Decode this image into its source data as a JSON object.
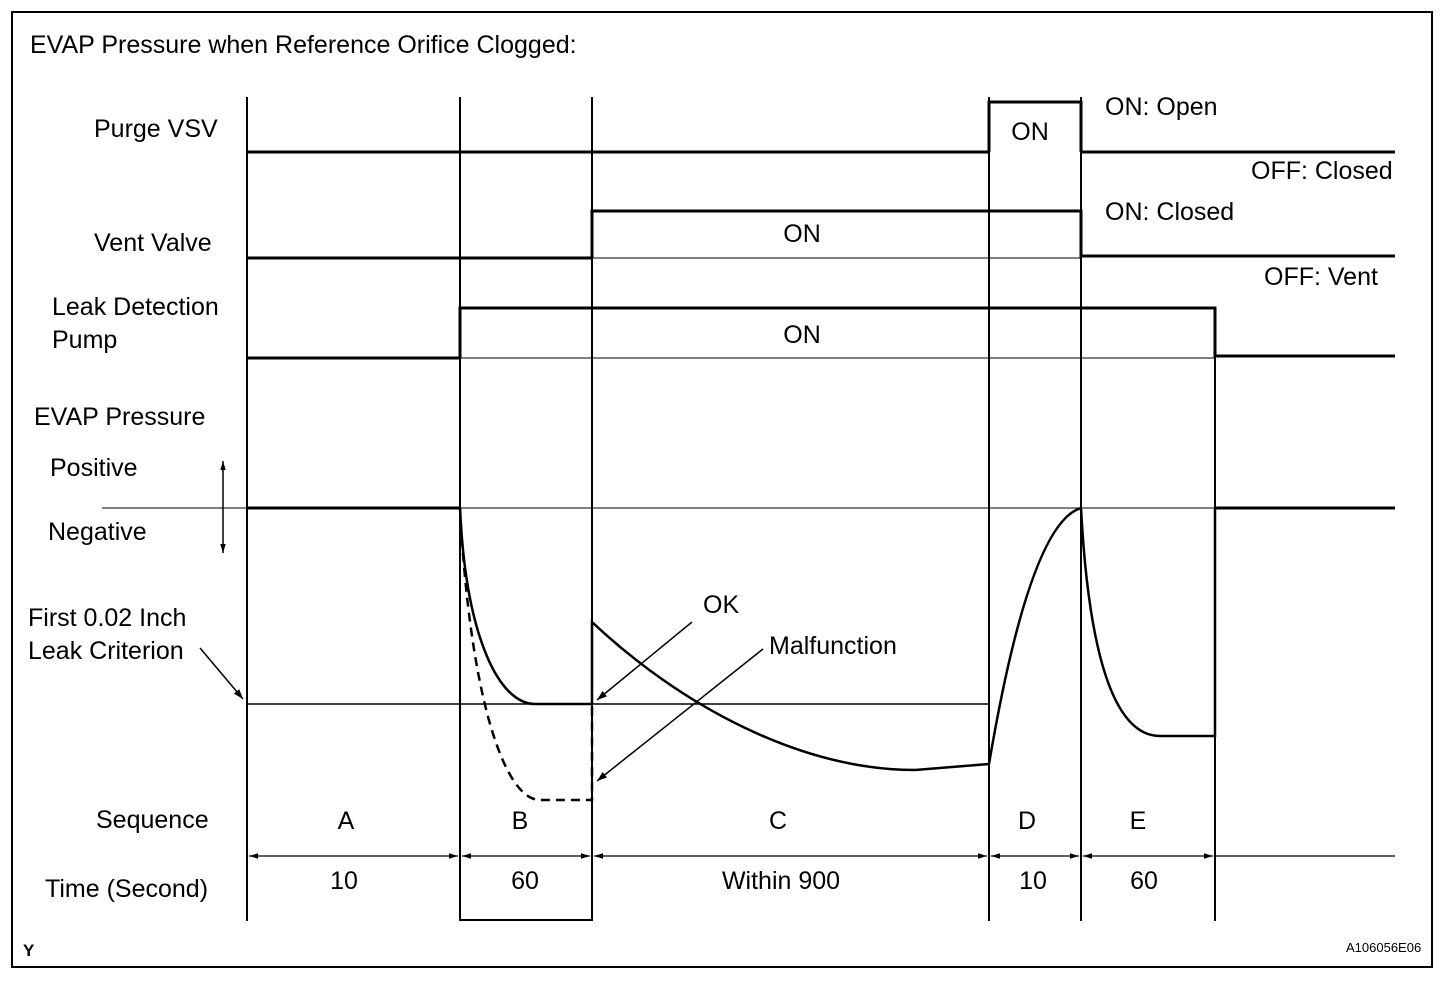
{
  "title": "EVAP Pressure when Reference Orifice Clogged:",
  "rows": {
    "purge_vsv": "Purge VSV",
    "vent_valve": "Vent Valve",
    "leak_pump_line1": "Leak Detection",
    "leak_pump_line2": "Pump",
    "evap_pressure": "EVAP Pressure",
    "positive": "Positive",
    "negative": "Negative",
    "criterion_line1": "First 0.02 Inch",
    "criterion_line2": "Leak Criterion",
    "sequence": "Sequence",
    "time": "Time (Second)"
  },
  "state_labels": {
    "purge_on_box": "ON",
    "purge_on": "ON: Open",
    "purge_off": "OFF: Closed",
    "vent_on_box": "ON",
    "vent_on": "ON: Closed",
    "vent_off": "OFF: Vent",
    "pump_on_box": "ON"
  },
  "callouts": {
    "ok": "OK",
    "malfunction": "Malfunction"
  },
  "sequence": [
    "A",
    "B",
    "C",
    "D",
    "E"
  ],
  "durations": [
    "10",
    "60",
    "Within 900",
    "10",
    "60"
  ],
  "footer": {
    "left_mark": "Y",
    "figure_id": "A106056E06"
  }
}
